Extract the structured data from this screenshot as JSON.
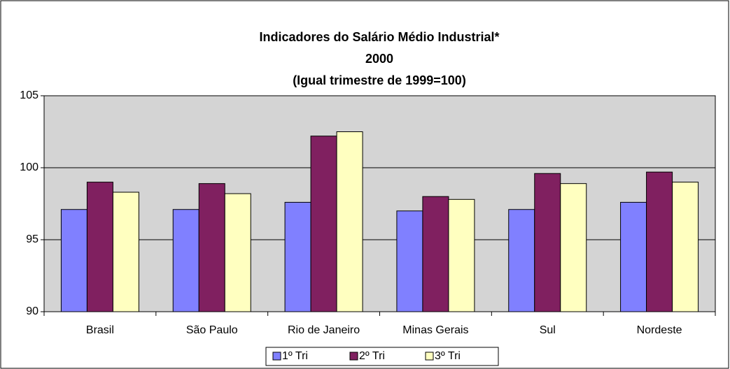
{
  "chart_data": {
    "type": "bar",
    "title": [
      "Indicadores do Salário Médio Industrial*",
      "2000",
      "(Igual trimestre de 1999=100)"
    ],
    "categories": [
      "Brasil",
      "São Paulo",
      "Rio de Janeiro",
      "Minas Gerais",
      "Sul",
      "Nordeste"
    ],
    "series": [
      {
        "name": "1º Tri",
        "color": "#8080ff",
        "values": [
          97.1,
          97.1,
          97.6,
          97.0,
          97.1,
          97.6
        ]
      },
      {
        "name": "2º Tri",
        "color": "#802060",
        "values": [
          99.0,
          98.9,
          102.2,
          98.0,
          99.6,
          99.7
        ]
      },
      {
        "name": "3º Tri",
        "color": "#ffffc0",
        "values": [
          98.3,
          98.2,
          102.5,
          97.8,
          98.9,
          99.0
        ]
      }
    ],
    "ylim": [
      90,
      105
    ],
    "yticks": [
      90,
      95,
      100,
      105
    ],
    "grid": true,
    "legend": "bottom"
  }
}
